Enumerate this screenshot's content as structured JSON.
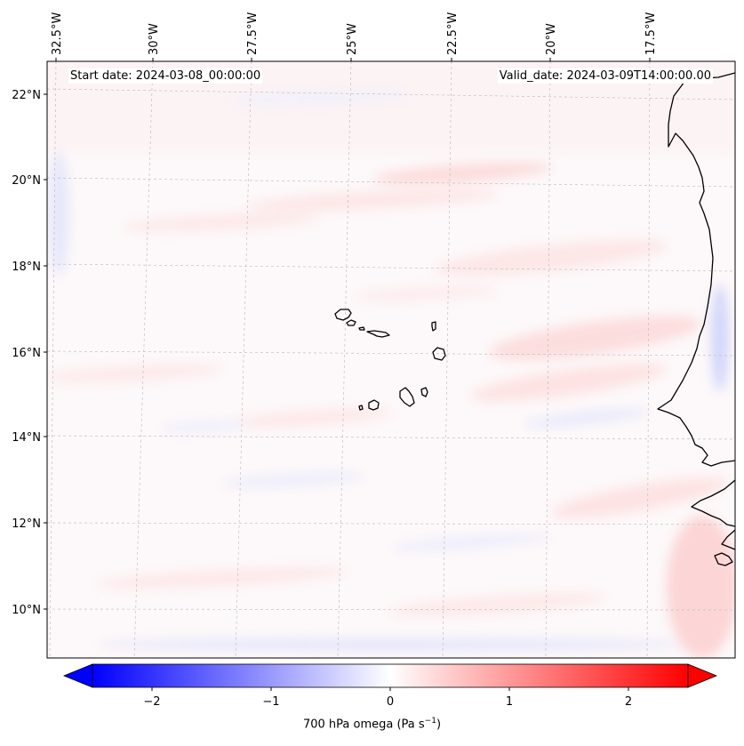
{
  "map": {
    "start_date": "Start date: 2024-03-08_00:00:00",
    "valid_date": "Valid_date: 2024-03-09T14:00:00.00",
    "longitude_labels": [
      "32.5°W",
      "30°W",
      "27.5°W",
      "25°W",
      "22.5°W",
      "20°W",
      "17.5°W"
    ],
    "latitude_labels": [
      "22°N",
      "20°N",
      "18°N",
      "16°N",
      "14°N",
      "12°N",
      "10°N"
    ],
    "field": "700 hPa omega",
    "colormap": "bwr",
    "colors": {
      "negative": "#0000ff",
      "zero": "#ffffff",
      "positive": "#ff0000",
      "coastline": "#000000",
      "gridline": "#b0b0b0"
    },
    "features": [
      "Cabo Verde islands",
      "West African coastline"
    ]
  },
  "colorbar": {
    "ticks": [
      -2,
      -1,
      0,
      1,
      2
    ],
    "tick_labels": [
      "−2",
      "−1",
      "0",
      "1",
      "2"
    ],
    "range": [
      -2.5,
      2.5
    ],
    "extend": "both",
    "label_prefix": "700 hPa omega (Pa s",
    "label_exp": "−1",
    "label_suffix": ")"
  }
}
